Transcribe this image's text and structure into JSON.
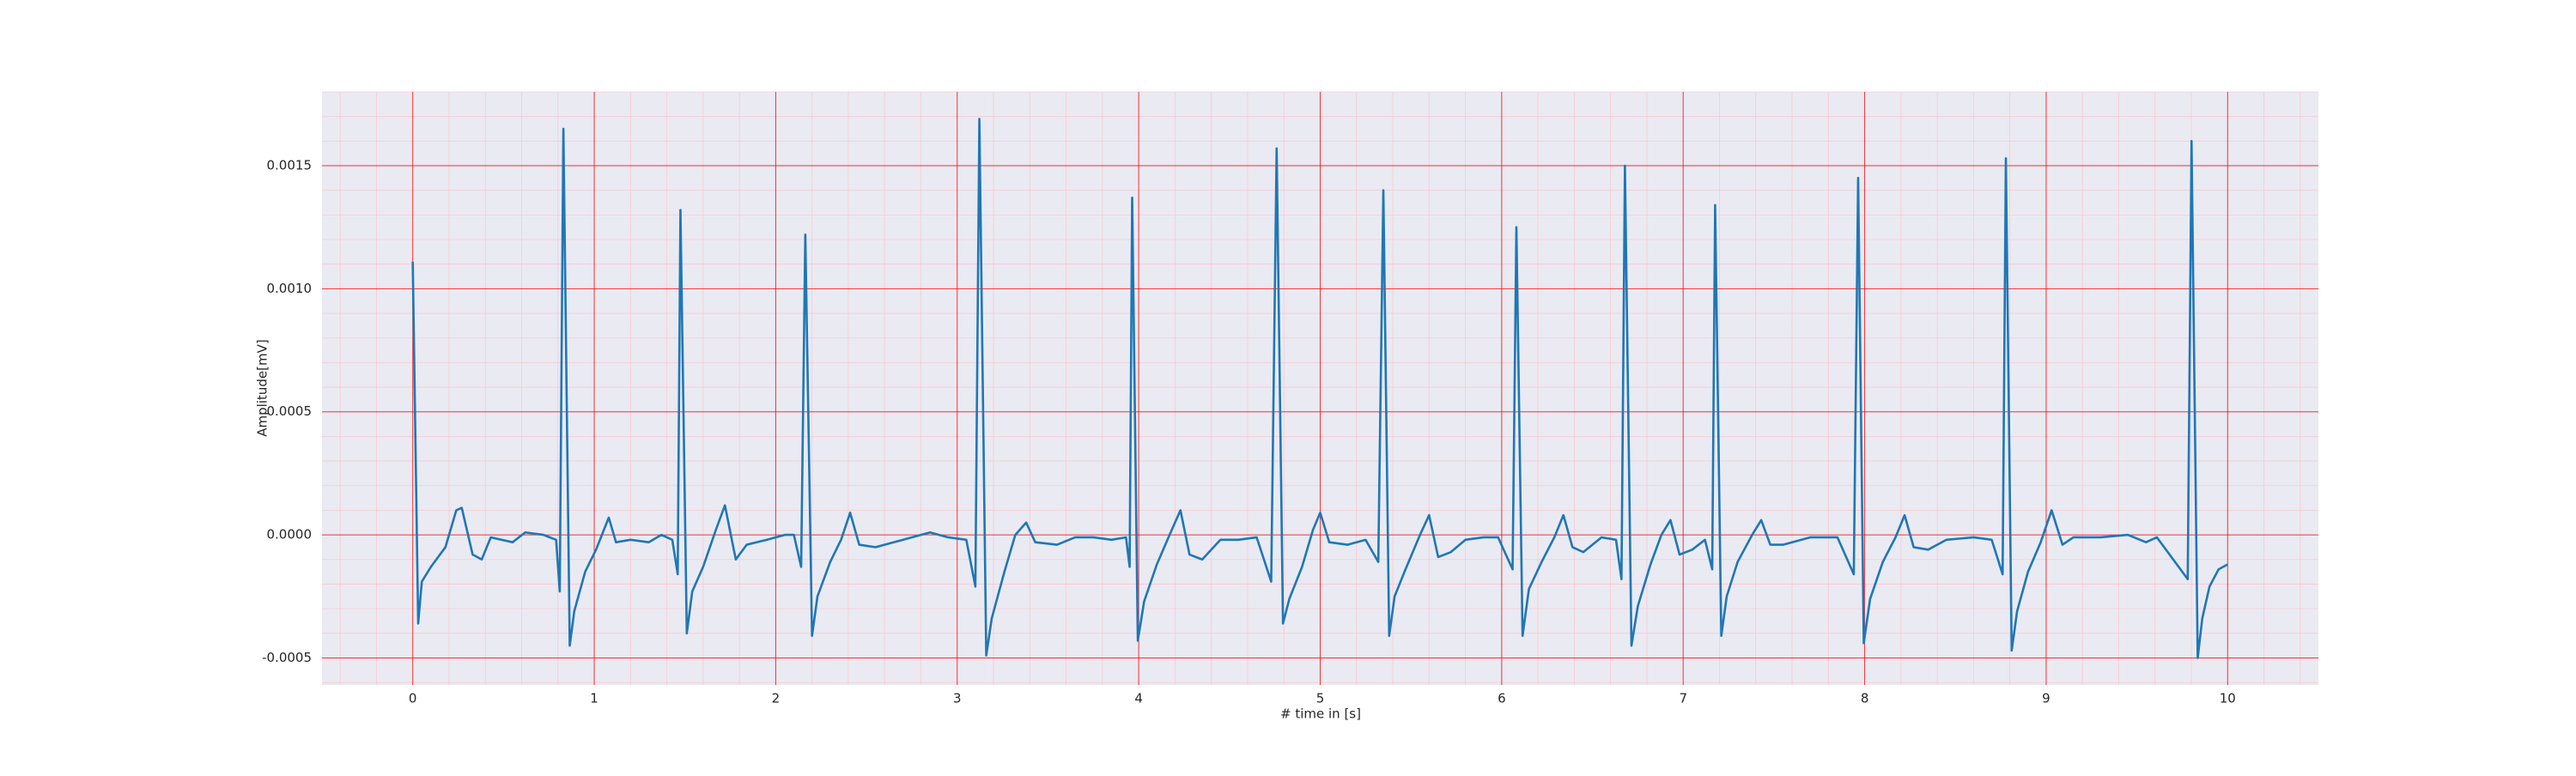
{
  "chart_data": {
    "type": "line",
    "xlabel": "# time in [s]",
    "ylabel": "Amplitude[mV]",
    "color": "#1f77b4",
    "background": "#eaeaf2",
    "grid": true,
    "grid_color": "#ff0000",
    "minor_grid": true,
    "minor_grid_color": "#ffc0cb",
    "xlim": [
      -0.5,
      10.5
    ],
    "xticks": [
      0,
      1,
      2,
      3,
      4,
      5,
      6,
      7,
      8,
      9,
      10
    ],
    "ylim": [
      -0.00061,
      0.0018
    ],
    "yticks": [
      -0.0005,
      {
        "value": 0,
        "label": "0.0000"
      },
      0.0005,
      {
        "value": 0.001,
        "label": "0.0010"
      },
      0.0015
    ],
    "x": [
      0,
      0.03,
      0.05,
      0.1,
      0.18,
      0.24,
      0.27,
      0.33,
      0.38,
      0.43,
      0.55,
      0.62,
      0.72,
      0.79,
      0.81,
      0.83,
      0.865,
      0.89,
      0.95,
      1.01,
      1.08,
      1.12,
      1.2,
      1.3,
      1.37,
      1.43,
      1.46,
      1.475,
      1.51,
      1.54,
      1.6,
      1.67,
      1.72,
      1.78,
      1.84,
      1.95,
      2.05,
      2.1,
      2.14,
      2.163,
      2.2,
      2.23,
      2.3,
      2.36,
      2.41,
      2.46,
      2.55,
      2.7,
      2.85,
      2.95,
      3.05,
      3.1,
      3.122,
      3.16,
      3.19,
      3.26,
      3.32,
      3.38,
      3.43,
      3.55,
      3.65,
      3.75,
      3.85,
      3.93,
      3.95,
      3.964,
      3.995,
      4.03,
      4.1,
      4.17,
      4.23,
      4.28,
      4.35,
      4.45,
      4.55,
      4.65,
      4.73,
      4.76,
      4.795,
      4.83,
      4.9,
      4.96,
      5.0,
      5.05,
      5.15,
      5.25,
      5.32,
      5.348,
      5.38,
      5.41,
      5.47,
      5.55,
      5.6,
      5.65,
      5.72,
      5.8,
      5.9,
      5.98,
      6.06,
      6.081,
      6.115,
      6.15,
      6.22,
      6.29,
      6.34,
      6.39,
      6.45,
      6.55,
      6.63,
      6.66,
      6.679,
      6.715,
      6.75,
      6.82,
      6.88,
      6.93,
      6.98,
      7.05,
      7.12,
      7.16,
      7.176,
      7.21,
      7.24,
      7.3,
      7.38,
      7.43,
      7.48,
      7.55,
      7.7,
      7.85,
      7.94,
      7.964,
      7.995,
      8.03,
      8.1,
      8.17,
      8.22,
      8.27,
      8.35,
      8.45,
      8.6,
      8.7,
      8.76,
      8.778,
      8.81,
      8.84,
      8.9,
      8.97,
      9.03,
      9.09,
      9.15,
      9.3,
      9.45,
      9.55,
      9.61,
      9.78,
      9.801,
      9.835,
      9.86,
      9.9,
      9.95,
      10.0
    ],
    "values": [
      0.00111,
      -0.00036,
      -0.00019,
      -0.00013,
      -5e-05,
      0.0001,
      0.00011,
      -8e-05,
      -0.0001,
      -1e-05,
      -3e-05,
      1e-05,
      0,
      -2e-05,
      -0.00023,
      0.00165,
      -0.00045,
      -0.00031,
      -0.00015,
      -6e-05,
      7e-05,
      -3e-05,
      -2e-05,
      -3e-05,
      0,
      -2e-05,
      -0.00016,
      0.00132,
      -0.0004,
      -0.00023,
      -0.00013,
      2e-05,
      0.00012,
      -0.0001,
      -4e-05,
      -2e-05,
      0,
      0,
      -0.00013,
      0.00122,
      -0.00041,
      -0.00025,
      -0.00011,
      -2e-05,
      9e-05,
      -4e-05,
      -5e-05,
      -2e-05,
      1e-05,
      -1e-05,
      -2e-05,
      -0.00021,
      0.00169,
      -0.00049,
      -0.00034,
      -0.00015,
      0,
      5e-05,
      -3e-05,
      -4e-05,
      -1e-05,
      -1e-05,
      -2e-05,
      -1e-05,
      -0.00013,
      0.00137,
      -0.00043,
      -0.00027,
      -0.00012,
      0,
      0.0001,
      -8e-05,
      -0.0001,
      -2e-05,
      -2e-05,
      -1e-05,
      -0.00019,
      0.00157,
      -0.00036,
      -0.00026,
      -0.00013,
      2e-05,
      9e-05,
      -3e-05,
      -4e-05,
      -2e-05,
      -0.00011,
      0.0014,
      -0.00041,
      -0.00025,
      -0.00014,
      0,
      8e-05,
      -9e-05,
      -7e-05,
      -2e-05,
      -1e-05,
      -1e-05,
      -0.00014,
      0.00125,
      -0.00041,
      -0.00022,
      -0.00011,
      -1e-05,
      8e-05,
      -5e-05,
      -7e-05,
      -1e-05,
      -2e-05,
      -0.00018,
      0.0015,
      -0.00045,
      -0.00029,
      -0.00012,
      0,
      6e-05,
      -8e-05,
      -6e-05,
      -2e-05,
      -0.00014,
      0.00134,
      -0.00041,
      -0.00025,
      -0.00011,
      0,
      6e-05,
      -4e-05,
      -4e-05,
      -1e-05,
      -1e-05,
      -0.00016,
      0.00145,
      -0.00044,
      -0.00026,
      -0.00011,
      -1e-05,
      8e-05,
      -5e-05,
      -6e-05,
      -2e-05,
      -1e-05,
      -2e-05,
      -0.00016,
      0.00153,
      -0.00047,
      -0.00031,
      -0.00015,
      -3e-05,
      0.0001,
      -4e-05,
      -1e-05,
      -1e-05,
      0,
      -3e-05,
      -1e-05,
      -0.00018,
      0.0016,
      -0.0005,
      -0.00034,
      -0.00021,
      -0.00014,
      -0.00012
    ]
  }
}
